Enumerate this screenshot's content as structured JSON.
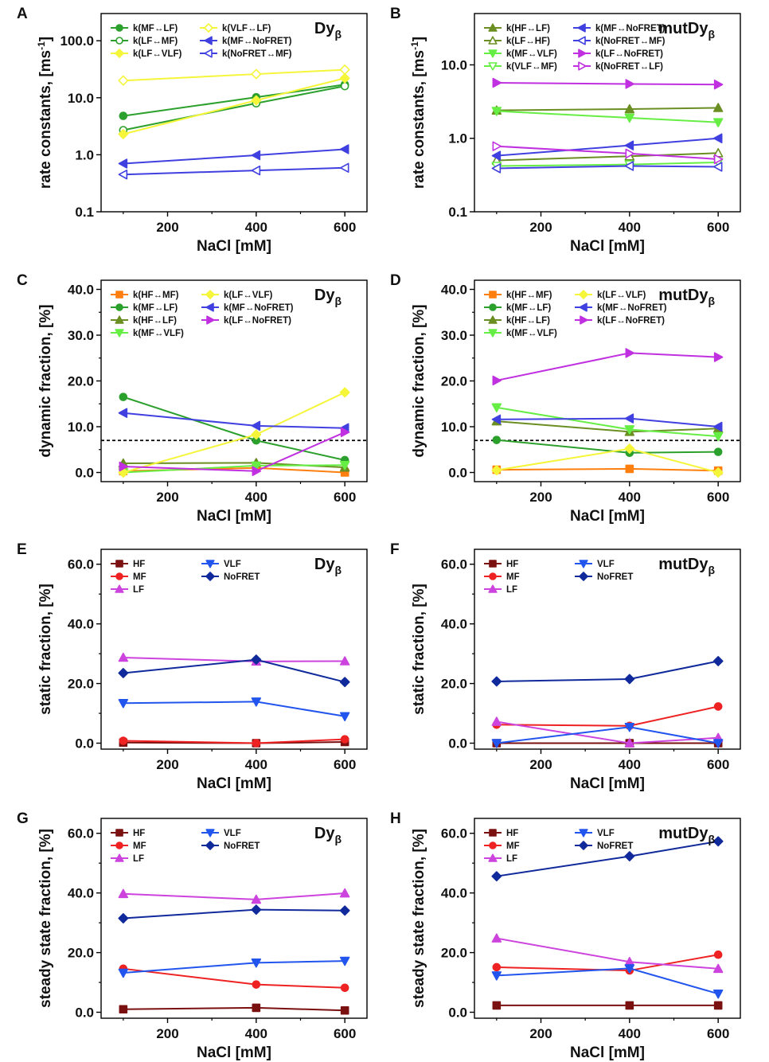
{
  "chart_data": [
    {
      "id": "A",
      "letter": "A",
      "type": "line",
      "construct": "Dy",
      "construct_sub": "β",
      "xlabel": "NaCl [mM]",
      "ylabel": "rate constants, [ms",
      "ylabel_sup": "-1",
      "ylabel_end": "]",
      "yscale": "log",
      "xlim": [
        50,
        650
      ],
      "ylim": [
        0.1,
        300
      ],
      "xticks": [
        200,
        400,
        600
      ],
      "xtick_labels": [
        "200",
        "400",
        "600"
      ],
      "yticks": [
        0.1,
        1,
        10,
        100
      ],
      "ytick_labels": [
        "0.1",
        "1.0",
        "10.0",
        "100.0"
      ],
      "x": [
        100,
        400,
        600
      ],
      "legend_columns": 2,
      "series": [
        {
          "name": "k(MF↔LF)",
          "color": "#2ca02c",
          "marker": "circle",
          "filled": true,
          "values": [
            4.8,
            10.2,
            17.0
          ]
        },
        {
          "name": "k(LF↔MF)",
          "color": "#2ca02c",
          "marker": "circle",
          "filled": false,
          "values": [
            2.7,
            8.0,
            16.0
          ]
        },
        {
          "name": "k(LF↔VLF)",
          "color": "#f5f53a",
          "marker": "diamond",
          "filled": true,
          "values": [
            2.3,
            9.0,
            22.0
          ]
        },
        {
          "name": "k(VLF↔LF)",
          "color": "#f5f53a",
          "marker": "diamond",
          "filled": false,
          "values": [
            20.0,
            26.0,
            31.0
          ]
        },
        {
          "name": "k(MF↔NoFRET)",
          "color": "#4040e0",
          "marker": "triangle-left",
          "filled": true,
          "values": [
            0.7,
            0.98,
            1.25
          ]
        },
        {
          "name": "k(NoFRET↔MF)",
          "color": "#4040e0",
          "marker": "triangle-left",
          "filled": false,
          "values": [
            0.45,
            0.53,
            0.59
          ]
        }
      ]
    },
    {
      "id": "B",
      "letter": "B",
      "type": "line",
      "construct": "mutDy",
      "construct_sub": "β",
      "xlabel": "NaCl [mM]",
      "ylabel": "rate constants, [ms",
      "ylabel_sup": "-1",
      "ylabel_end": "]",
      "yscale": "log",
      "xlim": [
        50,
        650
      ],
      "ylim": [
        0.1,
        50
      ],
      "xticks": [
        200,
        400,
        600
      ],
      "xtick_labels": [
        "200",
        "400",
        "600"
      ],
      "yticks": [
        0.1,
        1,
        10
      ],
      "ytick_labels": [
        "0.1",
        "1.0",
        "10.0"
      ],
      "x": [
        100,
        400,
        600
      ],
      "legend_columns": 2,
      "series": [
        {
          "name": "k(HF↔LF)",
          "color": "#6b8e23",
          "marker": "triangle-up",
          "filled": true,
          "values": [
            2.4,
            2.5,
            2.6
          ]
        },
        {
          "name": "k(LF↔HF)",
          "color": "#6b8e23",
          "marker": "triangle-up",
          "filled": false,
          "values": [
            0.5,
            0.57,
            0.63
          ]
        },
        {
          "name": "k(MF↔VLF)",
          "color": "#66ee44",
          "marker": "triangle-down",
          "filled": true,
          "values": [
            2.35,
            1.9,
            1.65
          ]
        },
        {
          "name": "k(VLF↔MF)",
          "color": "#66ee44",
          "marker": "triangle-down",
          "filled": false,
          "values": [
            0.42,
            0.44,
            0.47
          ]
        },
        {
          "name": "k(MF↔NoFRET)",
          "color": "#4040e0",
          "marker": "triangle-left",
          "filled": true,
          "values": [
            0.58,
            0.8,
            1.0
          ]
        },
        {
          "name": "k(NoFRET↔MF)",
          "color": "#4040e0",
          "marker": "triangle-left",
          "filled": false,
          "values": [
            0.39,
            0.42,
            0.41
          ]
        },
        {
          "name": "k(LF↔NoFRET)",
          "color": "#c030e0",
          "marker": "triangle-right",
          "filled": true,
          "values": [
            5.7,
            5.5,
            5.4
          ]
        },
        {
          "name": "k(NoFRET↔LF)",
          "color": "#c030e0",
          "marker": "triangle-right",
          "filled": false,
          "values": [
            0.78,
            0.62,
            0.52
          ]
        }
      ]
    },
    {
      "id": "C",
      "letter": "C",
      "type": "line",
      "construct": "Dy",
      "construct_sub": "β",
      "xlabel": "NaCl [mM]",
      "ylabel": "dynamic fraction, [%]",
      "yscale": "linear",
      "xlim": [
        50,
        650
      ],
      "ylim": [
        -2,
        42
      ],
      "xticks": [
        200,
        400,
        600
      ],
      "xtick_labels": [
        "200",
        "400",
        "600"
      ],
      "yticks": [
        0,
        10,
        20,
        30,
        40
      ],
      "ytick_labels": [
        "0.0",
        "10.0",
        "20.0",
        "30.0",
        "40.0"
      ],
      "reference_line": 7,
      "x": [
        100,
        400,
        600
      ],
      "legend_columns": 2,
      "series": [
        {
          "name": "k(HF↔MF)",
          "color": "#ff7f0e",
          "marker": "square",
          "filled": true,
          "values": [
            0.3,
            1.0,
            0.0
          ]
        },
        {
          "name": "k(MF↔LF)",
          "color": "#2ca02c",
          "marker": "circle",
          "filled": true,
          "values": [
            16.5,
            7.0,
            2.7
          ]
        },
        {
          "name": "k(HF↔LF)",
          "color": "#6b8e23",
          "marker": "triangle-up",
          "filled": true,
          "values": [
            2.0,
            2.1,
            1.1
          ]
        },
        {
          "name": "k(MF↔VLF)",
          "color": "#66ee44",
          "marker": "triangle-down",
          "filled": true,
          "values": [
            0.0,
            1.5,
            1.6
          ]
        },
        {
          "name": "k(LF↔VLF)",
          "color": "#f5f53a",
          "marker": "diamond",
          "filled": true,
          "values": [
            0.0,
            8.3,
            17.5
          ]
        },
        {
          "name": "k(MF↔NoFRET)",
          "color": "#4040e0",
          "marker": "triangle-left",
          "filled": true,
          "values": [
            13.0,
            10.2,
            9.7
          ]
        },
        {
          "name": "k(LF↔NoFRET)",
          "color": "#c030e0",
          "marker": "triangle-right",
          "filled": true,
          "values": [
            1.3,
            0.3,
            8.8
          ]
        }
      ]
    },
    {
      "id": "D",
      "letter": "D",
      "type": "line",
      "construct": "mutDy",
      "construct_sub": "β",
      "xlabel": "NaCl [mM]",
      "ylabel": "dynamic fraction, [%]",
      "yscale": "linear",
      "xlim": [
        50,
        650
      ],
      "ylim": [
        -2,
        42
      ],
      "xticks": [
        200,
        400,
        600
      ],
      "xtick_labels": [
        "200",
        "400",
        "600"
      ],
      "yticks": [
        0,
        10,
        20,
        30,
        40
      ],
      "ytick_labels": [
        "0.0",
        "10.0",
        "20.0",
        "30.0",
        "40.0"
      ],
      "reference_line": 7,
      "x": [
        100,
        400,
        600
      ],
      "legend_columns": 2,
      "series": [
        {
          "name": "k(HF↔MF)",
          "color": "#ff7f0e",
          "marker": "square",
          "filled": true,
          "values": [
            0.6,
            0.8,
            0.4
          ]
        },
        {
          "name": "k(MF↔LF)",
          "color": "#2ca02c",
          "marker": "circle",
          "filled": true,
          "values": [
            7.1,
            4.3,
            4.5
          ]
        },
        {
          "name": "k(HF↔LF)",
          "color": "#6b8e23",
          "marker": "triangle-up",
          "filled": true,
          "values": [
            11.2,
            8.9,
            9.6
          ]
        },
        {
          "name": "k(MF↔VLF)",
          "color": "#66ee44",
          "marker": "triangle-down",
          "filled": true,
          "values": [
            14.2,
            9.4,
            7.9
          ]
        },
        {
          "name": "k(LF↔VLF)",
          "color": "#f5f53a",
          "marker": "diamond",
          "filled": true,
          "values": [
            0.5,
            5.2,
            0.0
          ]
        },
        {
          "name": "k(MF↔NoFRET)",
          "color": "#4040e0",
          "marker": "triangle-left",
          "filled": true,
          "values": [
            11.6,
            11.8,
            10.0
          ]
        },
        {
          "name": "k(LF↔NoFRET)",
          "color": "#c030e0",
          "marker": "triangle-right",
          "filled": true,
          "values": [
            20.1,
            26.1,
            25.2
          ]
        }
      ]
    },
    {
      "id": "E",
      "letter": "E",
      "type": "line",
      "construct": "Dy",
      "construct_sub": "β",
      "xlabel": "NaCl [mM]",
      "ylabel": "static fraction, [%]",
      "yscale": "linear",
      "xlim": [
        50,
        650
      ],
      "ylim": [
        -2,
        65
      ],
      "xticks": [
        200,
        400,
        600
      ],
      "xtick_labels": [
        "200",
        "400",
        "600"
      ],
      "yticks": [
        0,
        20,
        40,
        60
      ],
      "ytick_labels": [
        "0.0",
        "20.0",
        "40.0",
        "60.0"
      ],
      "x": [
        100,
        400,
        600
      ],
      "legend_columns": 2,
      "series": [
        {
          "name": "HF",
          "color": "#7a1010",
          "marker": "square",
          "filled": true,
          "values": [
            0.2,
            0.0,
            0.4
          ]
        },
        {
          "name": "MF",
          "color": "#ee2222",
          "marker": "circle",
          "filled": true,
          "values": [
            0.8,
            0.0,
            1.3
          ]
        },
        {
          "name": "LF",
          "color": "#cc44dd",
          "marker": "triangle-up",
          "filled": true,
          "values": [
            28.7,
            27.4,
            27.5
          ]
        },
        {
          "name": "VLF",
          "color": "#2255ee",
          "marker": "triangle-down",
          "filled": true,
          "values": [
            13.4,
            13.9,
            9.0
          ]
        },
        {
          "name": "NoFRET",
          "color": "#102a9c",
          "marker": "diamond",
          "filled": true,
          "values": [
            23.5,
            28.0,
            20.5
          ]
        }
      ]
    },
    {
      "id": "F",
      "letter": "F",
      "type": "line",
      "construct": "mutDy",
      "construct_sub": "β",
      "xlabel": "NaCl [mM]",
      "ylabel": "static fraction, [%]",
      "yscale": "linear",
      "xlim": [
        50,
        650
      ],
      "ylim": [
        -2,
        65
      ],
      "xticks": [
        200,
        400,
        600
      ],
      "xtick_labels": [
        "200",
        "400",
        "600"
      ],
      "yticks": [
        0,
        20,
        40,
        60
      ],
      "ytick_labels": [
        "0.0",
        "20.0",
        "40.0",
        "60.0"
      ],
      "x": [
        100,
        400,
        600
      ],
      "legend_columns": 2,
      "series": [
        {
          "name": "HF",
          "color": "#7a1010",
          "marker": "square",
          "filled": true,
          "values": [
            0.0,
            0.0,
            0.0
          ]
        },
        {
          "name": "MF",
          "color": "#ee2222",
          "marker": "circle",
          "filled": true,
          "values": [
            6.2,
            5.8,
            12.3
          ]
        },
        {
          "name": "LF",
          "color": "#cc44dd",
          "marker": "triangle-up",
          "filled": true,
          "values": [
            7.2,
            0.0,
            1.8
          ]
        },
        {
          "name": "VLF",
          "color": "#2255ee",
          "marker": "triangle-down",
          "filled": true,
          "values": [
            0.0,
            5.4,
            0.0
          ]
        },
        {
          "name": "NoFRET",
          "color": "#102a9c",
          "marker": "diamond",
          "filled": true,
          "values": [
            20.7,
            21.5,
            27.5
          ]
        }
      ]
    },
    {
      "id": "G",
      "letter": "G",
      "type": "line",
      "construct": "Dy",
      "construct_sub": "β",
      "xlabel": "NaCl [mM]",
      "ylabel": "steady state fraction, [%]",
      "yscale": "linear",
      "xlim": [
        50,
        650
      ],
      "ylim": [
        -2,
        65
      ],
      "xticks": [
        200,
        400,
        600
      ],
      "xtick_labels": [
        "200",
        "400",
        "600"
      ],
      "yticks": [
        0,
        20,
        40,
        60
      ],
      "ytick_labels": [
        "0.0",
        "20.0",
        "40.0",
        "60.0"
      ],
      "x": [
        100,
        400,
        600
      ],
      "legend_columns": 2,
      "series": [
        {
          "name": "HF",
          "color": "#7a1010",
          "marker": "square",
          "filled": true,
          "values": [
            1.0,
            1.5,
            0.6
          ]
        },
        {
          "name": "MF",
          "color": "#ee2222",
          "marker": "circle",
          "filled": true,
          "values": [
            14.6,
            9.3,
            8.2
          ]
        },
        {
          "name": "LF",
          "color": "#cc44dd",
          "marker": "triangle-up",
          "filled": true,
          "values": [
            39.7,
            37.8,
            39.9
          ]
        },
        {
          "name": "VLF",
          "color": "#2255ee",
          "marker": "triangle-down",
          "filled": true,
          "values": [
            13.2,
            16.6,
            17.2
          ]
        },
        {
          "name": "NoFRET",
          "color": "#102a9c",
          "marker": "diamond",
          "filled": true,
          "values": [
            31.5,
            34.4,
            34.1
          ]
        }
      ]
    },
    {
      "id": "H",
      "letter": "H",
      "type": "line",
      "construct": "mutDy",
      "construct_sub": "β",
      "xlabel": "NaCl [mM]",
      "ylabel": "steady state fraction, [%]",
      "yscale": "linear",
      "xlim": [
        50,
        650
      ],
      "ylim": [
        -2,
        65
      ],
      "xticks": [
        200,
        400,
        600
      ],
      "xtick_labels": [
        "200",
        "400",
        "600"
      ],
      "yticks": [
        0,
        20,
        40,
        60
      ],
      "ytick_labels": [
        "0.0",
        "20.0",
        "40.0",
        "60.0"
      ],
      "x": [
        100,
        400,
        600
      ],
      "legend_columns": 2,
      "series": [
        {
          "name": "HF",
          "color": "#7a1010",
          "marker": "square",
          "filled": true,
          "values": [
            2.3,
            2.3,
            2.3
          ]
        },
        {
          "name": "MF",
          "color": "#ee2222",
          "marker": "circle",
          "filled": true,
          "values": [
            15.1,
            14.0,
            19.3
          ]
        },
        {
          "name": "LF",
          "color": "#cc44dd",
          "marker": "triangle-up",
          "filled": true,
          "values": [
            24.8,
            16.9,
            14.6
          ]
        },
        {
          "name": "VLF",
          "color": "#2255ee",
          "marker": "triangle-down",
          "filled": true,
          "values": [
            12.3,
            14.7,
            6.2
          ]
        },
        {
          "name": "NoFRET",
          "color": "#102a9c",
          "marker": "diamond",
          "filled": true,
          "values": [
            45.6,
            52.3,
            57.3
          ]
        }
      ]
    }
  ]
}
